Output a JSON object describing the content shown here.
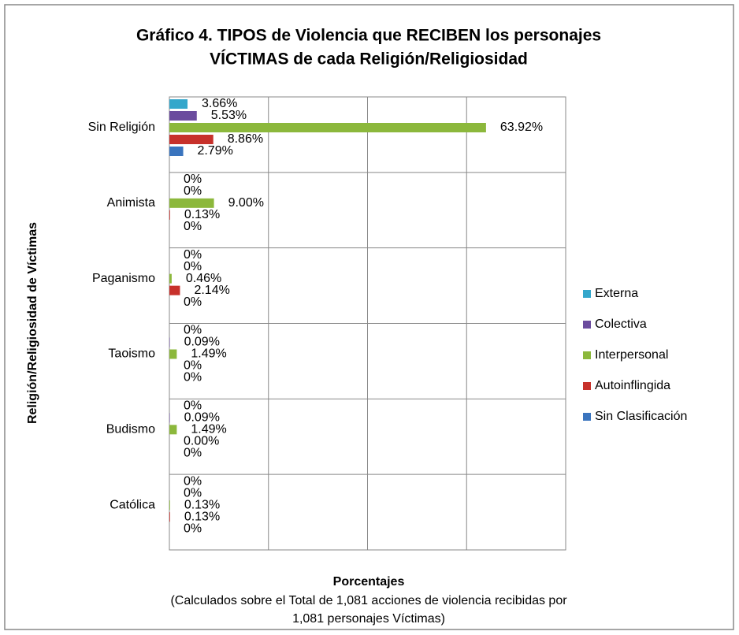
{
  "chart_data": {
    "type": "bar",
    "orientation": "horizontal",
    "title": [
      "Gráfico 4. TIPOS de Violencia que RECIBEN los personajes",
      "VÍCTIMAS de cada Religión/Religiosidad"
    ],
    "y_label": "Religión/Religiosidad de Víctimas",
    "x_label": "Porcentajes",
    "x_note": [
      "(Calculados sobre el Total de 1,081 acciones de violencia recibidas por",
      "1,081 personajes Víctimas)"
    ],
    "categories": [
      "Sin Religión",
      "Animista",
      "Paganismo",
      "Taoismo",
      "Budismo",
      "Católica"
    ],
    "series": [
      {
        "name": "Externa",
        "color": "#34a7cb",
        "values": [
          3.66,
          0,
          0,
          0,
          0,
          0
        ],
        "value_labels": [
          "3.66%",
          "0%",
          "0%",
          "0%",
          "0%",
          "0%"
        ]
      },
      {
        "name": "Colectiva",
        "color": "#6b4c9e",
        "values": [
          5.53,
          0,
          0,
          0.09,
          0.09,
          0
        ],
        "value_labels": [
          "5.53%",
          "0%",
          "0%",
          "0.09%",
          "0.09%",
          "0%"
        ]
      },
      {
        "name": "Interpersonal",
        "color": "#8cb83c",
        "values": [
          63.92,
          9.0,
          0.46,
          1.49,
          1.49,
          0.13
        ],
        "value_labels": [
          "63.92%",
          "9.00%",
          "0.46%",
          "1.49%",
          "1.49%",
          "0.13%"
        ]
      },
      {
        "name": "Autoinflingida",
        "color": "#c7312b",
        "values": [
          8.86,
          0.13,
          2.14,
          0,
          0.0,
          0.13
        ],
        "value_labels": [
          "8.86%",
          "0.13%",
          "2.14%",
          "0%",
          "0.00%",
          "0.13%"
        ]
      },
      {
        "name": "Sin Clasificación",
        "color": "#3a74be",
        "values": [
          2.79,
          0,
          0,
          0,
          0,
          0
        ],
        "value_labels": [
          "2.79%",
          "0%",
          "0%",
          "0%",
          "0%",
          "0%"
        ]
      }
    ],
    "xlim": [
      0,
      80
    ],
    "xticks": [
      0,
      20,
      40,
      60,
      80
    ],
    "grid": true,
    "legend": "right"
  }
}
